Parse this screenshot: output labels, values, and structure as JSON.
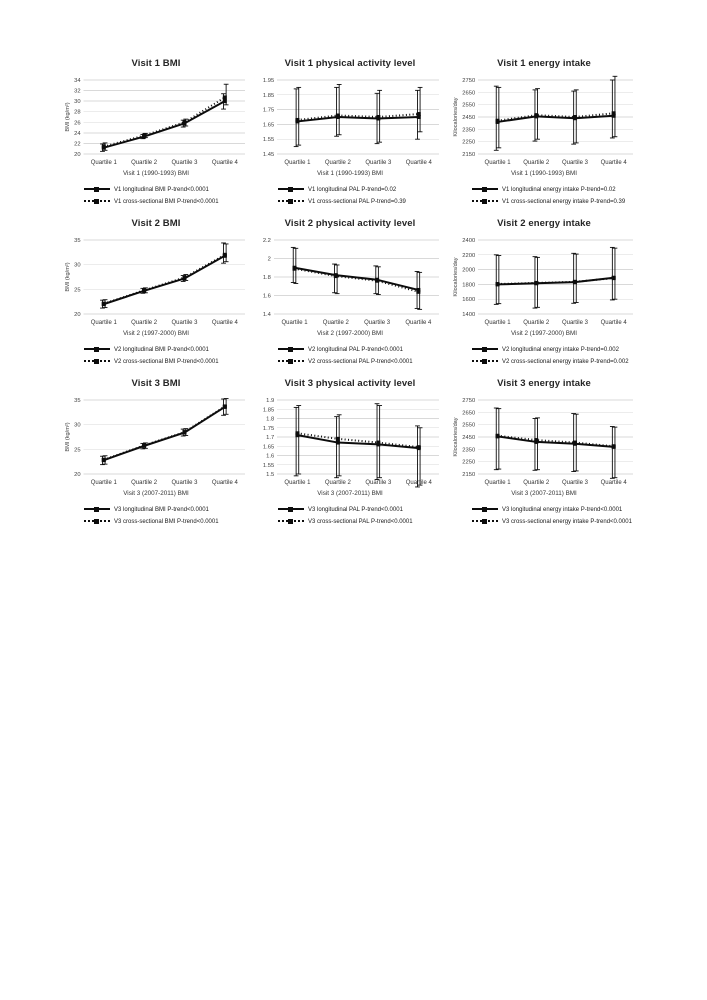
{
  "page": {
    "background": "#ffffff",
    "grid_layout": "3x3",
    "colors": {
      "series": "#0d0d0d",
      "gridline": "#d9d9d9",
      "tick_text": "#404040"
    }
  },
  "chart_data": [
    {
      "type": "line",
      "title": "Visit 1 BMI",
      "xlabel": "Visit 1 (1990-1993) BMI",
      "ylabel": "BMI (kg/m²)",
      "categories": [
        "Quartile 1",
        "Quartile 2",
        "Quartile 3",
        "Quartile 4"
      ],
      "ylim": [
        20,
        34
      ],
      "yticks": [
        "20",
        "22",
        "24",
        "26",
        "28",
        "30",
        "32",
        "34"
      ],
      "grid": "horizontal",
      "legend_position": "below",
      "series": [
        {
          "name": "V1 longitudinal BMI P-trend<0.0001",
          "line_style": "solid",
          "marker": "square",
          "values": [
            21.2,
            23.3,
            25.8,
            30.0
          ],
          "err_low": [
            20.5,
            22.9,
            25.1,
            28.5
          ],
          "err_high": [
            21.9,
            23.7,
            26.4,
            31.4
          ]
        },
        {
          "name": "V1 cross-sectional BMI P-trend<0.0001",
          "line_style": "dotted",
          "marker": "square",
          "values": [
            21.4,
            23.5,
            26.0,
            30.7
          ],
          "err_low": [
            20.7,
            23.1,
            25.3,
            29.3
          ],
          "err_high": [
            22.1,
            23.9,
            26.6,
            33.2
          ]
        }
      ]
    },
    {
      "type": "line",
      "title": "Visit 1 physical activity level",
      "xlabel": "Visit 1 (1990-1993) BMI",
      "ylabel": "",
      "categories": [
        "Quartile 1",
        "Quartile 2",
        "Quartile 3",
        "Quartile 4"
      ],
      "ylim": [
        1.45,
        1.95
      ],
      "yticks": [
        "1.45",
        "1.55",
        "1.65",
        "1.75",
        "1.85",
        "1.95"
      ],
      "grid": "horizontal",
      "legend_position": "below",
      "series": [
        {
          "name": "V1 longitudinal PAL P-trend=0.02",
          "line_style": "solid",
          "marker": "square",
          "values": [
            1.67,
            1.7,
            1.69,
            1.7
          ],
          "err_low": [
            1.5,
            1.57,
            1.52,
            1.55
          ],
          "err_high": [
            1.89,
            1.9,
            1.86,
            1.88
          ]
        },
        {
          "name": "V1 cross-sectional PAL P-trend=0.39",
          "line_style": "dotted",
          "marker": "square",
          "values": [
            1.68,
            1.71,
            1.7,
            1.72
          ],
          "err_low": [
            1.51,
            1.58,
            1.53,
            1.6
          ],
          "err_high": [
            1.9,
            1.92,
            1.88,
            1.9
          ]
        }
      ]
    },
    {
      "type": "line",
      "title": "Visit 1 energy intake",
      "xlabel": "Visit 1 (1990-1993) BMI",
      "ylabel": "Kilocalories/day",
      "categories": [
        "Quartile 1",
        "Quartile 2",
        "Quartile 3",
        "Quartile 4"
      ],
      "ylim": [
        2150,
        2750
      ],
      "yticks": [
        "2150",
        "2250",
        "2350",
        "2450",
        "2550",
        "2650",
        "2750"
      ],
      "grid": "horizontal",
      "legend_position": "below",
      "series": [
        {
          "name": "V1 longitudinal energy intake P-trend=0.02",
          "line_style": "solid",
          "marker": "square",
          "values": [
            2410,
            2455,
            2440,
            2460
          ],
          "err_low": [
            2180,
            2255,
            2230,
            2280
          ],
          "err_high": [
            2700,
            2670,
            2660,
            2750
          ]
        },
        {
          "name": "V1 cross-sectional energy intake P-trend=0.39",
          "line_style": "dotted",
          "marker": "square",
          "values": [
            2420,
            2465,
            2450,
            2480
          ],
          "err_low": [
            2200,
            2270,
            2240,
            2290
          ],
          "err_high": [
            2690,
            2680,
            2670,
            2780
          ]
        }
      ]
    },
    {
      "type": "line",
      "title": "Visit 2 BMI",
      "xlabel": "Visit 2 (1997-2000) BMI",
      "ylabel": "BMI (kg/m²)",
      "categories": [
        "Quartile 1",
        "Quartile 2",
        "Quartile 3",
        "Quartile 4"
      ],
      "ylim": [
        20,
        35
      ],
      "yticks": [
        "20",
        "25",
        "30",
        "35"
      ],
      "grid": "horizontal",
      "legend_position": "below",
      "series": [
        {
          "name": "V2 longitudinal BMI P-trend<0.0001",
          "line_style": "solid",
          "marker": "square",
          "values": [
            22.0,
            24.7,
            27.2,
            31.8
          ],
          "err_low": [
            21.2,
            24.2,
            26.6,
            30.3
          ],
          "err_high": [
            22.8,
            25.2,
            27.8,
            34.4
          ]
        },
        {
          "name": "V2 cross-sectional BMI P-trend<0.0001",
          "line_style": "dotted",
          "marker": "square",
          "values": [
            22.1,
            24.8,
            27.4,
            32.0
          ],
          "err_low": [
            21.3,
            24.3,
            26.8,
            30.6
          ],
          "err_high": [
            22.9,
            25.3,
            28.0,
            34.2
          ]
        }
      ]
    },
    {
      "type": "line",
      "title": "Visit 2 physical activity level",
      "xlabel": "Visit 2 (1997-2000) BMI",
      "ylabel": "",
      "categories": [
        "Quartile 1",
        "Quartile 2",
        "Quartile 3",
        "Quartile 4"
      ],
      "ylim": [
        1.4,
        2.2
      ],
      "yticks": [
        "1.4",
        "1.6",
        "1.8",
        "2",
        "2.2"
      ],
      "grid": "horizontal",
      "legend_position": "below",
      "series": [
        {
          "name": "V2 longitudinal PAL P-trend<0.0001",
          "line_style": "solid",
          "marker": "square",
          "values": [
            1.9,
            1.82,
            1.77,
            1.66
          ],
          "err_low": [
            1.74,
            1.63,
            1.62,
            1.46
          ],
          "err_high": [
            2.12,
            1.94,
            1.92,
            1.86
          ]
        },
        {
          "name": "V2 cross-sectional PAL P-trend<0.0001",
          "line_style": "dotted",
          "marker": "square",
          "values": [
            1.89,
            1.81,
            1.76,
            1.64
          ],
          "err_low": [
            1.73,
            1.62,
            1.61,
            1.45
          ],
          "err_high": [
            2.11,
            1.93,
            1.91,
            1.85
          ]
        }
      ]
    },
    {
      "type": "line",
      "title": "Visit 2 energy intake",
      "xlabel": "Visit 2 (1997-2000) BMI",
      "ylabel": "Kilocalories/day",
      "categories": [
        "Quartile 1",
        "Quartile 2",
        "Quartile 3",
        "Quartile 4"
      ],
      "ylim": [
        1400,
        2400
      ],
      "yticks": [
        "1400",
        "1600",
        "1800",
        "2000",
        "2200",
        "2400"
      ],
      "grid": "horizontal",
      "legend_position": "below",
      "series": [
        {
          "name": "V2 longitudinal energy intake P-trend=0.002",
          "line_style": "solid",
          "marker": "square",
          "values": [
            1800,
            1815,
            1830,
            1890
          ],
          "err_low": [
            1530,
            1480,
            1545,
            1590
          ],
          "err_high": [
            2200,
            2175,
            2220,
            2300
          ]
        },
        {
          "name": "V2 cross-sectional energy intake P-trend=0.002",
          "line_style": "dotted",
          "marker": "square",
          "values": [
            1805,
            1820,
            1835,
            1885
          ],
          "err_low": [
            1540,
            1490,
            1555,
            1600
          ],
          "err_high": [
            2190,
            2165,
            2210,
            2290
          ]
        }
      ]
    },
    {
      "type": "line",
      "title": "Visit 3 BMI",
      "xlabel": "Visit 3 (2007-2011) BMI",
      "ylabel": "BMI (kg/m²)",
      "categories": [
        "Quartile 1",
        "Quartile 2",
        "Quartile 3",
        "Quartile 4"
      ],
      "ylim": [
        20,
        35
      ],
      "yticks": [
        "20",
        "25",
        "30",
        "35"
      ],
      "grid": "horizontal",
      "legend_position": "below",
      "series": [
        {
          "name": "V3 longitudinal BMI P-trend<0.0001",
          "line_style": "solid",
          "marker": "square",
          "values": [
            22.8,
            25.7,
            28.4,
            33.6
          ],
          "err_low": [
            21.9,
            25.1,
            27.7,
            31.9
          ],
          "err_high": [
            23.6,
            26.2,
            29.1,
            35.2
          ]
        },
        {
          "name": "V3 cross-sectional BMI P-trend<0.0001",
          "line_style": "dotted",
          "marker": "square",
          "values": [
            22.9,
            25.8,
            28.5,
            33.7
          ],
          "err_low": [
            22.0,
            25.2,
            27.8,
            32.1
          ],
          "err_high": [
            23.7,
            26.3,
            29.2,
            35.3
          ]
        }
      ]
    },
    {
      "type": "line",
      "title": "Visit 3 physical activity level",
      "xlabel": "Visit 3 (2007-2011) BMI",
      "ylabel": "",
      "categories": [
        "Quartile 1",
        "Quartile 2",
        "Quartile 3",
        "Quartile 4"
      ],
      "ylim": [
        1.5,
        1.9
      ],
      "yticks": [
        "1.5",
        "1.55",
        "1.6",
        "1.65",
        "1.7",
        "1.75",
        "1.8",
        "1.85",
        "1.9"
      ],
      "grid": "horizontal",
      "legend_position": "below",
      "series": [
        {
          "name": "V3 longitudinal PAL P-trend<0.0001",
          "line_style": "solid",
          "marker": "square",
          "values": [
            1.71,
            1.67,
            1.66,
            1.64
          ],
          "err_low": [
            1.49,
            1.48,
            1.47,
            1.43
          ],
          "err_high": [
            1.86,
            1.81,
            1.88,
            1.76
          ]
        },
        {
          "name": "V3 cross-sectional PAL P-trend<0.0001",
          "line_style": "dotted",
          "marker": "square",
          "values": [
            1.72,
            1.69,
            1.67,
            1.645
          ],
          "err_low": [
            1.5,
            1.49,
            1.48,
            1.44
          ],
          "err_high": [
            1.87,
            1.82,
            1.87,
            1.75
          ]
        }
      ]
    },
    {
      "type": "line",
      "title": "Visit 3 energy intake",
      "xlabel": "Visit 3 (2007-2011) BMI",
      "ylabel": "Kilocalories/day",
      "categories": [
        "Quartile 1",
        "Quartile 2",
        "Quartile 3",
        "Quartile 4"
      ],
      "ylim": [
        2150,
        2750
      ],
      "yticks": [
        "2150",
        "2250",
        "2350",
        "2450",
        "2550",
        "2650",
        "2750"
      ],
      "grid": "horizontal",
      "legend_position": "below",
      "series": [
        {
          "name": "V3 longitudinal energy intake P-trend<0.0001",
          "line_style": "solid",
          "marker": "square",
          "values": [
            2455,
            2410,
            2395,
            2370
          ],
          "err_low": [
            2185,
            2180,
            2170,
            2115
          ],
          "err_high": [
            2685,
            2600,
            2640,
            2535
          ]
        },
        {
          "name": "V3 cross-sectional energy intake P-trend<0.0001",
          "line_style": "dotted",
          "marker": "square",
          "values": [
            2460,
            2425,
            2405,
            2375
          ],
          "err_low": [
            2190,
            2185,
            2175,
            2120
          ],
          "err_high": [
            2680,
            2605,
            2635,
            2530
          ]
        }
      ]
    }
  ]
}
